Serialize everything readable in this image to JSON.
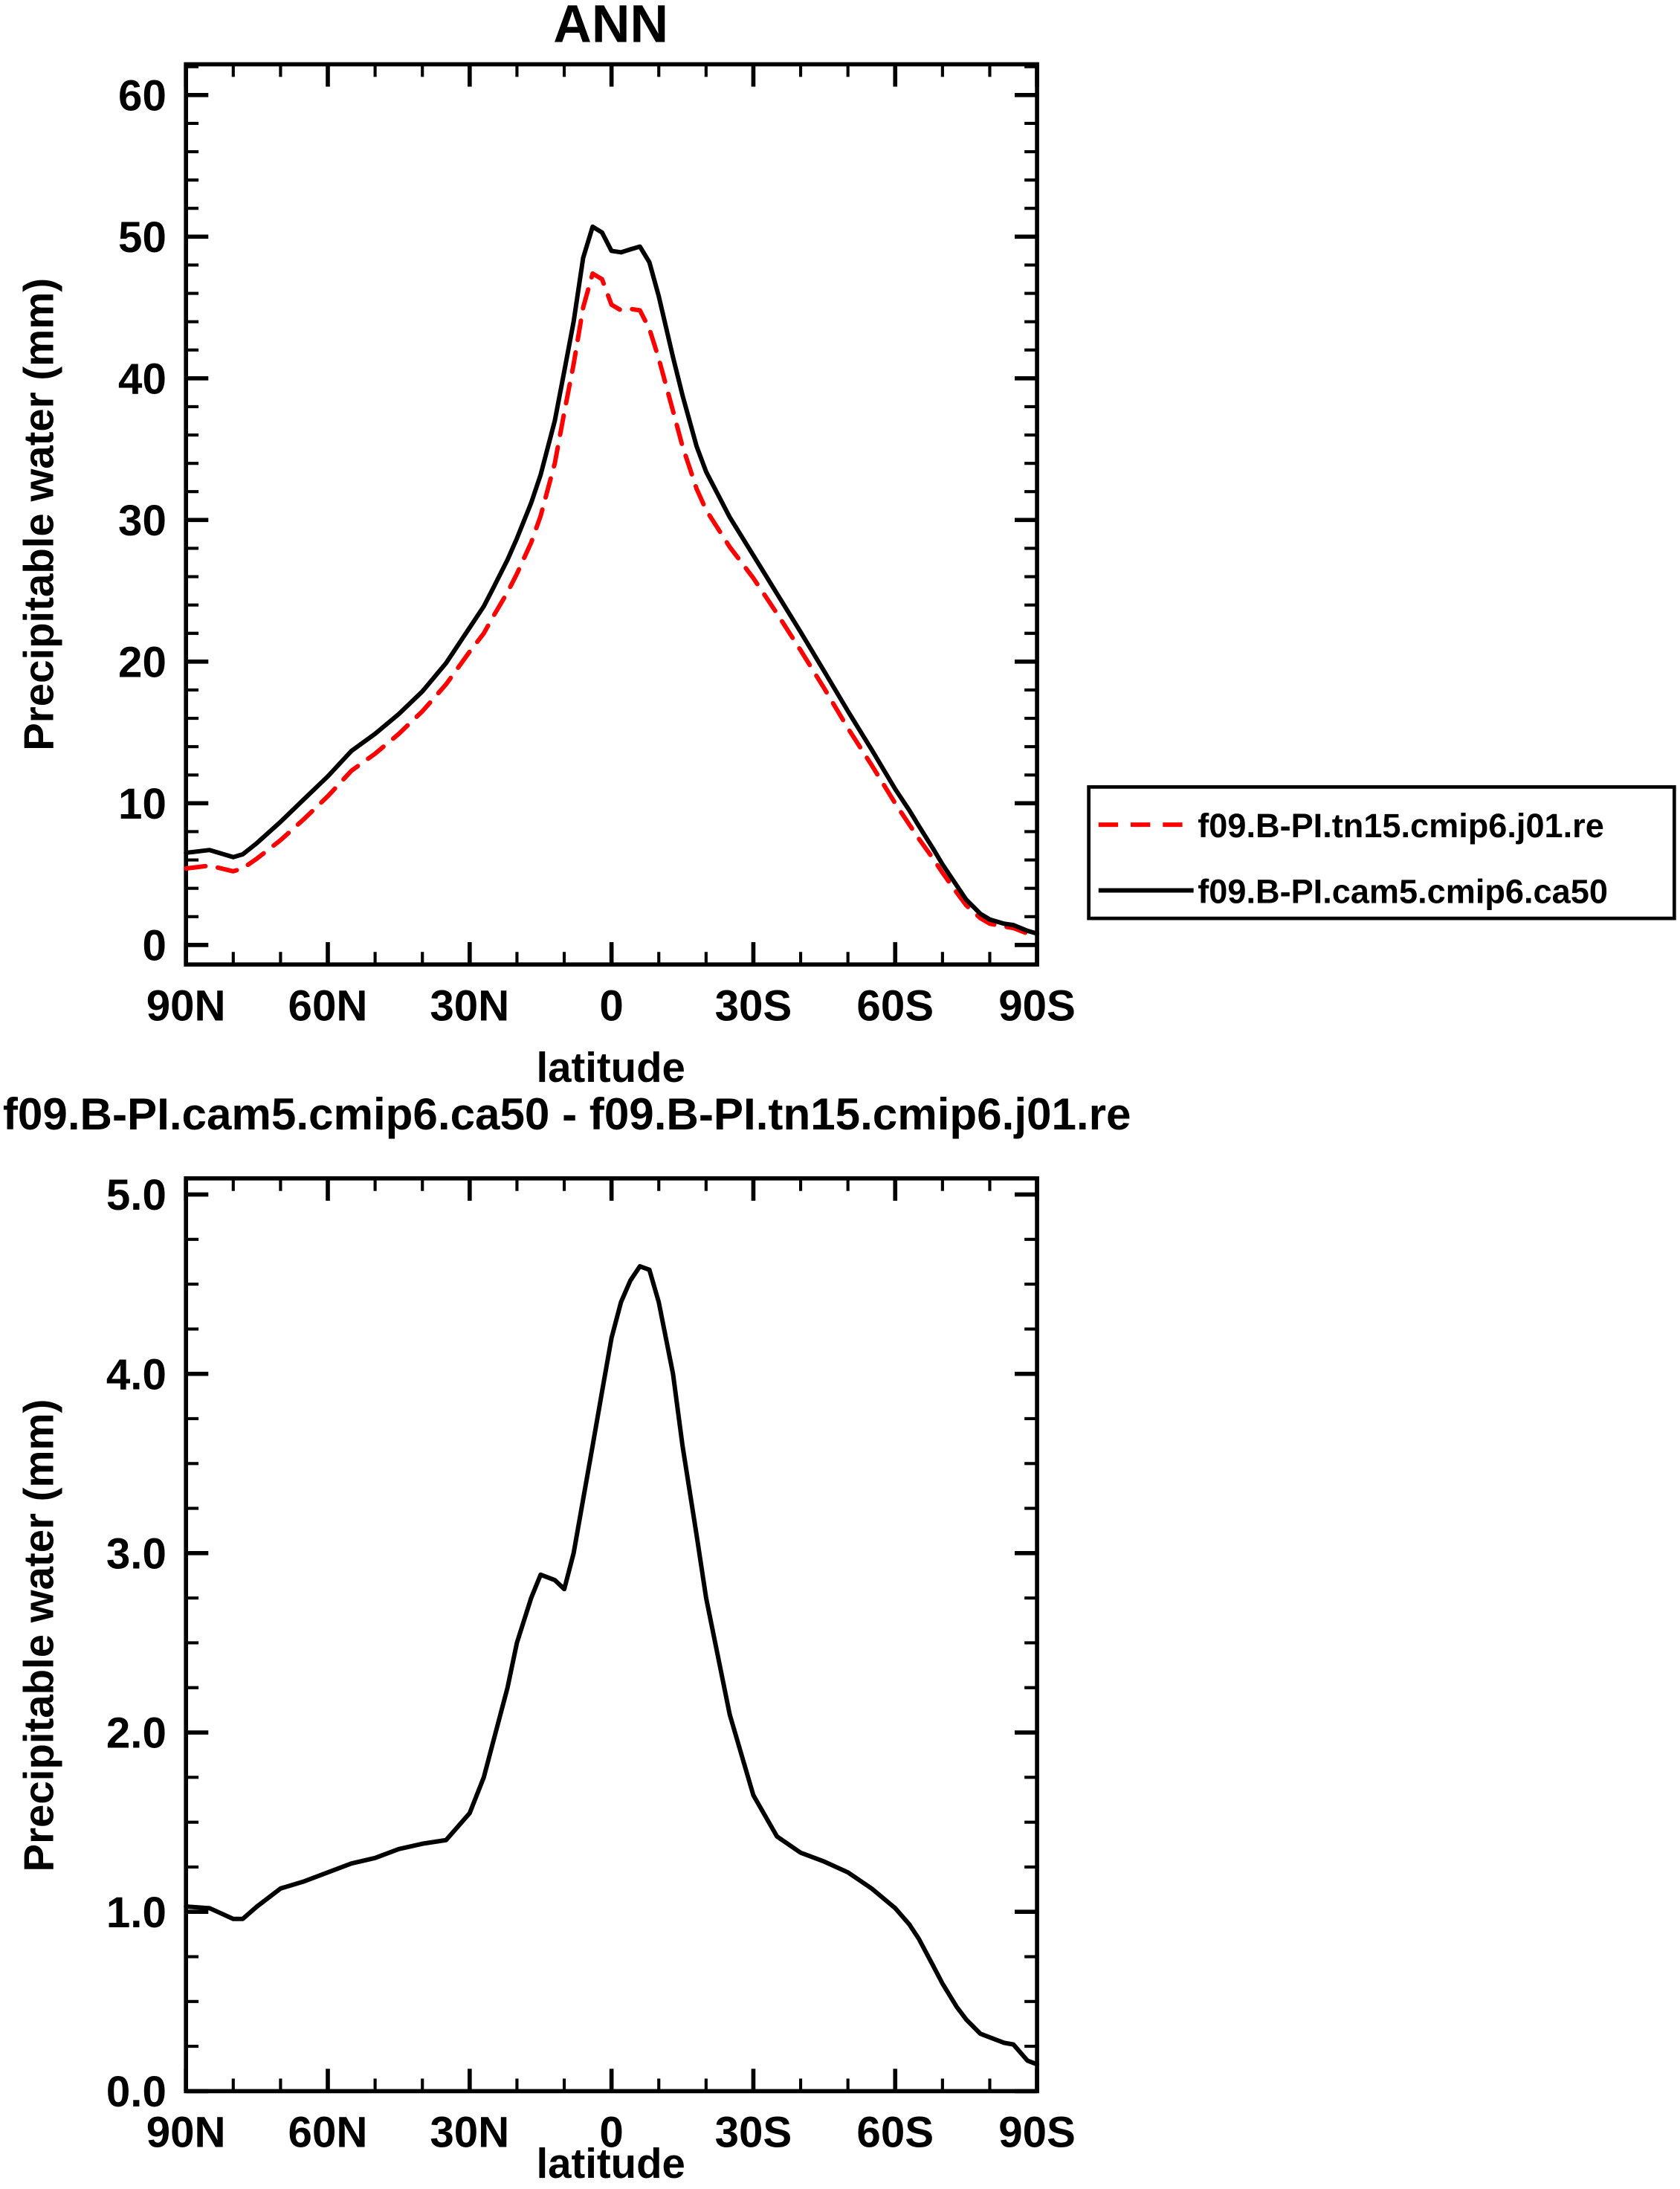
{
  "colors": {
    "background": "#ffffff",
    "frame": "#000000",
    "series_red": "#ff0000",
    "series_black": "#000000"
  },
  "chart_data": [
    {
      "type": "line",
      "title": "ANN",
      "xlabel": "latitude",
      "ylabel": "Precipitable water (mm)",
      "x_range": [
        90,
        -90
      ],
      "y_range": [
        -1.38,
        62.17
      ],
      "x_major_ticks": [
        {
          "value": 90,
          "label": "90N"
        },
        {
          "value": 60,
          "label": "60N"
        },
        {
          "value": 30,
          "label": "30N"
        },
        {
          "value": 0,
          "label": "0"
        },
        {
          "value": -30,
          "label": "30S"
        },
        {
          "value": -60,
          "label": "60S"
        },
        {
          "value": -90,
          "label": "90S"
        }
      ],
      "x_minor_step": 10,
      "y_major_ticks": [
        {
          "value": 0,
          "label": "0"
        },
        {
          "value": 10,
          "label": "10"
        },
        {
          "value": 20,
          "label": "20"
        },
        {
          "value": 30,
          "label": "30"
        },
        {
          "value": 40,
          "label": "40"
        },
        {
          "value": 50,
          "label": "50"
        },
        {
          "value": 60,
          "label": "60"
        }
      ],
      "y_minor_step": 2,
      "grid": false,
      "legend_position": "right-bottom-outside",
      "x": [
        90,
        85,
        80,
        78,
        75,
        70,
        65,
        60,
        55,
        50,
        45,
        40,
        35,
        30,
        27,
        25,
        22,
        20,
        17,
        15,
        12,
        10,
        8,
        6,
        4,
        2,
        0,
        -2,
        -4,
        -6,
        -8,
        -10,
        -13,
        -15,
        -18,
        -20,
        -25,
        -30,
        -35,
        -40,
        -45,
        -50,
        -55,
        -60,
        -63,
        -65,
        -68,
        -70,
        -73,
        -75,
        -78,
        -80,
        -83,
        -85,
        -88,
        -90
      ],
      "series": [
        {
          "name": "f09.B-PI.tn15.cmip6.j01.re",
          "color": "#ff0000",
          "line_style": "dashed",
          "values": [
            5.4,
            5.6,
            5.2,
            5.4,
            6.1,
            7.4,
            8.9,
            10.5,
            12.3,
            13.5,
            14.9,
            16.5,
            18.4,
            20.7,
            22.0,
            23.2,
            24.9,
            26.2,
            28.4,
            30.3,
            34.0,
            37.6,
            41.0,
            45.0,
            47.4,
            47.0,
            45.2,
            44.8,
            44.9,
            44.8,
            43.5,
            41.4,
            37.7,
            35.2,
            32.2,
            30.7,
            28.1,
            25.9,
            23.4,
            20.8,
            18.1,
            15.3,
            12.7,
            10.0,
            8.5,
            7.5,
            6.1,
            5.1,
            3.7,
            2.8,
            1.9,
            1.5,
            1.3,
            1.2,
            0.8,
            0.65
          ]
        },
        {
          "name": "f09.B-PI.cam5.cmip6.ca50",
          "color": "#000000",
          "line_style": "solid",
          "values": [
            6.5,
            6.7,
            6.2,
            6.4,
            7.2,
            8.7,
            10.3,
            11.9,
            13.7,
            14.9,
            16.3,
            17.9,
            19.9,
            22.4,
            23.9,
            25.2,
            27.2,
            28.7,
            31.2,
            33.2,
            37.0,
            40.5,
            44.0,
            48.5,
            50.7,
            50.3,
            49.0,
            48.9,
            49.1,
            49.3,
            48.2,
            45.8,
            41.5,
            38.8,
            35.2,
            33.4,
            30.2,
            27.5,
            24.8,
            22.1,
            19.3,
            16.5,
            13.8,
            11.0,
            9.5,
            8.4,
            6.8,
            5.7,
            4.2,
            3.2,
            2.2,
            1.8,
            1.5,
            1.4,
            1.0,
            0.8
          ]
        }
      ]
    },
    {
      "type": "line",
      "title": "f09.B-PI.cam5.cmip6.ca50 - f09.B-PI.tn15.cmip6.j01.re",
      "xlabel": "latitude",
      "ylabel": "Precipitable water (mm)",
      "x_range": [
        90,
        -90
      ],
      "y_range": [
        0,
        5.09
      ],
      "x_major_ticks": [
        {
          "value": 90,
          "label": "90N"
        },
        {
          "value": 60,
          "label": "60N"
        },
        {
          "value": 30,
          "label": "30N"
        },
        {
          "value": 0,
          "label": "0"
        },
        {
          "value": -30,
          "label": "30S"
        },
        {
          "value": -60,
          "label": "60S"
        },
        {
          "value": -90,
          "label": "90S"
        }
      ],
      "x_minor_step": 10,
      "y_major_ticks": [
        {
          "value": 0,
          "label": "0.0"
        },
        {
          "value": 1,
          "label": "1.0"
        },
        {
          "value": 2,
          "label": "2.0"
        },
        {
          "value": 3,
          "label": "3.0"
        },
        {
          "value": 4,
          "label": "4.0"
        },
        {
          "value": 5,
          "label": "5.0"
        }
      ],
      "y_minor_step": 0.25,
      "grid": false,
      "x": [
        90,
        85,
        80,
        78,
        75,
        70,
        65,
        60,
        55,
        50,
        45,
        40,
        35,
        30,
        27,
        25,
        22,
        20,
        17,
        15,
        12,
        10,
        8,
        6,
        4,
        2,
        0,
        -2,
        -4,
        -6,
        -8,
        -10,
        -13,
        -15,
        -18,
        -20,
        -25,
        -30,
        -35,
        -40,
        -45,
        -50,
        -55,
        -60,
        -63,
        -65,
        -68,
        -70,
        -73,
        -75,
        -78,
        -80,
        -83,
        -85,
        -88,
        -90
      ],
      "series": [
        {
          "name": "f09.B-PI.cam5.cmip6.ca50 - f09.B-PI.tn15.cmip6.j01.re",
          "color": "#000000",
          "line_style": "solid",
          "values": [
            1.03,
            1.02,
            0.96,
            0.96,
            1.03,
            1.13,
            1.17,
            1.22,
            1.27,
            1.3,
            1.35,
            1.38,
            1.4,
            1.55,
            1.75,
            1.95,
            2.25,
            2.5,
            2.75,
            2.88,
            2.85,
            2.8,
            3.0,
            3.3,
            3.6,
            3.9,
            4.2,
            4.4,
            4.52,
            4.6,
            4.58,
            4.4,
            4.0,
            3.6,
            3.1,
            2.75,
            2.1,
            1.65,
            1.42,
            1.33,
            1.28,
            1.22,
            1.13,
            1.02,
            0.93,
            0.85,
            0.7,
            0.6,
            0.47,
            0.4,
            0.32,
            0.3,
            0.27,
            0.26,
            0.17,
            0.15
          ]
        }
      ]
    }
  ]
}
